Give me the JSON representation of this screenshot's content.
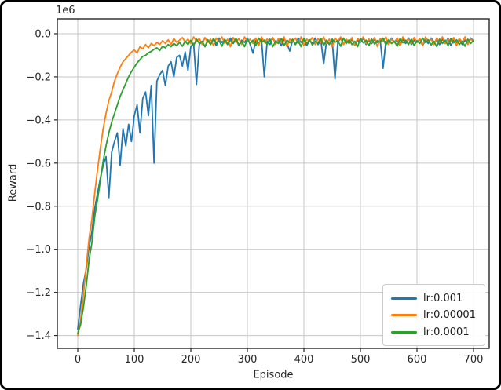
{
  "figure": {
    "background": "#ffffff",
    "border_color": "#000000",
    "grid_color": "#c6c6c6",
    "spine_color": "#262626",
    "text_color": "#262626"
  },
  "chart_data": {
    "type": "line",
    "title": "",
    "xlabel": "Episode",
    "ylabel": "Reward",
    "offset_text": "1e6",
    "values_unit": "1e6",
    "grid": true,
    "legend_position": "lower right",
    "xlim": [
      -36,
      728
    ],
    "ylim": [
      -1.46,
      0.07
    ],
    "x_ticks": [
      0,
      100,
      200,
      300,
      400,
      500,
      600,
      700
    ],
    "x_tick_labels": [
      "0",
      "100",
      "200",
      "300",
      "400",
      "500",
      "600",
      "700"
    ],
    "y_ticks": [
      0.0,
      -0.2,
      -0.4,
      -0.6,
      -0.8,
      -1.0,
      -1.2,
      -1.4
    ],
    "y_tick_labels": [
      "0.0",
      "−0.2",
      "−0.4",
      "−0.6",
      "−0.8",
      "−1.0",
      "−1.2",
      "−1.4"
    ],
    "x_start": 0,
    "x_step": 5,
    "series": [
      {
        "name": "lr:0.001",
        "color": "#1f77b4",
        "values": [
          -1.37,
          -1.26,
          -1.16,
          -1.09,
          -0.99,
          -0.92,
          -0.81,
          -0.74,
          -0.67,
          -0.61,
          -0.57,
          -0.76,
          -0.55,
          -0.5,
          -0.46,
          -0.61,
          -0.44,
          -0.52,
          -0.42,
          -0.5,
          -0.38,
          -0.33,
          -0.46,
          -0.3,
          -0.27,
          -0.38,
          -0.24,
          -0.6,
          -0.22,
          -0.19,
          -0.17,
          -0.24,
          -0.15,
          -0.13,
          -0.2,
          -0.11,
          -0.1,
          -0.15,
          -0.085,
          -0.17,
          -0.06,
          -0.045,
          -0.235,
          -0.05,
          -0.035,
          -0.06,
          -0.03,
          -0.05,
          -0.025,
          -0.055,
          -0.02,
          -0.04,
          -0.03,
          -0.05,
          -0.02,
          -0.045,
          -0.025,
          -0.055,
          -0.03,
          -0.04,
          -0.02,
          -0.05,
          -0.09,
          -0.03,
          -0.045,
          -0.025,
          -0.2,
          -0.035,
          -0.05,
          -0.02,
          -0.04,
          -0.03,
          -0.055,
          -0.025,
          -0.045,
          -0.08,
          -0.03,
          -0.05,
          -0.02,
          -0.04,
          -0.025,
          -0.055,
          -0.03,
          -0.045,
          -0.02,
          -0.05,
          -0.03,
          -0.14,
          -0.035,
          -0.05,
          -0.025,
          -0.21,
          -0.04,
          -0.02,
          -0.05,
          -0.03,
          -0.045,
          -0.025,
          -0.055,
          -0.03,
          -0.04,
          -0.02,
          -0.05,
          -0.03,
          -0.045,
          -0.025,
          -0.04,
          -0.03,
          -0.16,
          -0.035,
          -0.05,
          -0.02,
          -0.04,
          -0.03,
          -0.055,
          -0.025,
          -0.045,
          -0.02,
          -0.05,
          -0.03,
          -0.04,
          -0.025,
          -0.055,
          -0.03,
          -0.045,
          -0.02,
          -0.04,
          -0.03,
          -0.05,
          -0.025,
          -0.045,
          -0.02,
          -0.055,
          -0.03,
          -0.04,
          -0.025,
          -0.05,
          -0.03,
          -0.045,
          -0.02,
          -0.035
        ]
      },
      {
        "name": "lr:0.00001",
        "color": "#ff7f0e",
        "values": [
          -1.4,
          -1.33,
          -1.21,
          -1.08,
          -0.95,
          -0.86,
          -0.74,
          -0.63,
          -0.53,
          -0.44,
          -0.37,
          -0.31,
          -0.27,
          -0.22,
          -0.185,
          -0.155,
          -0.13,
          -0.115,
          -0.1,
          -0.085,
          -0.075,
          -0.09,
          -0.06,
          -0.07,
          -0.05,
          -0.065,
          -0.045,
          -0.055,
          -0.04,
          -0.05,
          -0.032,
          -0.045,
          -0.028,
          -0.05,
          -0.022,
          -0.04,
          -0.03,
          -0.018,
          -0.038,
          -0.025,
          -0.045,
          -0.015,
          -0.035,
          -0.022,
          -0.05,
          -0.018,
          -0.04,
          -0.025,
          -0.055,
          -0.02,
          -0.035,
          -0.015,
          -0.045,
          -0.025,
          -0.06,
          -0.018,
          -0.04,
          -0.022,
          -0.05,
          -0.015,
          -0.035,
          -0.025,
          -0.045,
          -0.02,
          -0.055,
          -0.015,
          -0.04,
          -0.025,
          -0.035,
          -0.018,
          -0.05,
          -0.022,
          -0.04,
          -0.015,
          -0.06,
          -0.025,
          -0.035,
          -0.02,
          -0.045,
          -0.015,
          -0.055,
          -0.025,
          -0.035,
          -0.018,
          -0.05,
          -0.022,
          -0.04,
          -0.015,
          -0.045,
          -0.025,
          -0.06,
          -0.02,
          -0.035,
          -0.015,
          -0.05,
          -0.025,
          -0.04,
          -0.018,
          -0.055,
          -0.022,
          -0.035,
          -0.015,
          -0.045,
          -0.025,
          -0.04,
          -0.018,
          -0.06,
          -0.022,
          -0.035,
          -0.015,
          -0.05,
          -0.025,
          -0.04,
          -0.02,
          -0.055,
          -0.015,
          -0.035,
          -0.025,
          -0.045,
          -0.018,
          -0.04,
          -0.022,
          -0.055,
          -0.015,
          -0.035,
          -0.025,
          -0.05,
          -0.02,
          -0.04,
          -0.015,
          -0.045,
          -0.025,
          -0.035,
          -0.018,
          -0.055,
          -0.022,
          -0.04,
          -0.015,
          -0.05,
          -0.025,
          -0.035
        ]
      },
      {
        "name": "lr:0.0001",
        "color": "#2ca02c",
        "values": [
          -1.39,
          -1.35,
          -1.27,
          -1.17,
          -1.05,
          -0.97,
          -0.85,
          -0.77,
          -0.68,
          -0.59,
          -0.52,
          -0.46,
          -0.41,
          -0.37,
          -0.33,
          -0.29,
          -0.26,
          -0.23,
          -0.2,
          -0.175,
          -0.155,
          -0.135,
          -0.12,
          -0.105,
          -0.1,
          -0.088,
          -0.082,
          -0.072,
          -0.065,
          -0.078,
          -0.058,
          -0.065,
          -0.05,
          -0.06,
          -0.045,
          -0.055,
          -0.04,
          -0.058,
          -0.035,
          -0.05,
          -0.03,
          -0.055,
          -0.025,
          -0.045,
          -0.035,
          -0.06,
          -0.028,
          -0.05,
          -0.022,
          -0.042,
          -0.032,
          -0.058,
          -0.025,
          -0.048,
          -0.03,
          -0.04,
          -0.022,
          -0.052,
          -0.035,
          -0.06,
          -0.025,
          -0.045,
          -0.03,
          -0.055,
          -0.02,
          -0.04,
          -0.03,
          -0.05,
          -0.025,
          -0.06,
          -0.035,
          -0.045,
          -0.022,
          -0.055,
          -0.03,
          -0.042,
          -0.025,
          -0.05,
          -0.032,
          -0.06,
          -0.02,
          -0.045,
          -0.028,
          -0.052,
          -0.035,
          -0.042,
          -0.022,
          -0.055,
          -0.03,
          -0.048,
          -0.025,
          -0.04,
          -0.032,
          -0.058,
          -0.02,
          -0.045,
          -0.028,
          -0.05,
          -0.035,
          -0.06,
          -0.022,
          -0.042,
          -0.03,
          -0.055,
          -0.025,
          -0.048,
          -0.032,
          -0.04,
          -0.02,
          -0.052,
          -0.028,
          -0.045,
          -0.035,
          -0.058,
          -0.022,
          -0.042,
          -0.03,
          -0.05,
          -0.025,
          -0.055,
          -0.032,
          -0.045,
          -0.02,
          -0.04,
          -0.028,
          -0.052,
          -0.035,
          -0.06,
          -0.025,
          -0.045,
          -0.03,
          -0.055,
          -0.022,
          -0.042,
          -0.028,
          -0.05,
          -0.035,
          -0.058,
          -0.025,
          -0.045,
          -0.03
        ]
      }
    ]
  }
}
